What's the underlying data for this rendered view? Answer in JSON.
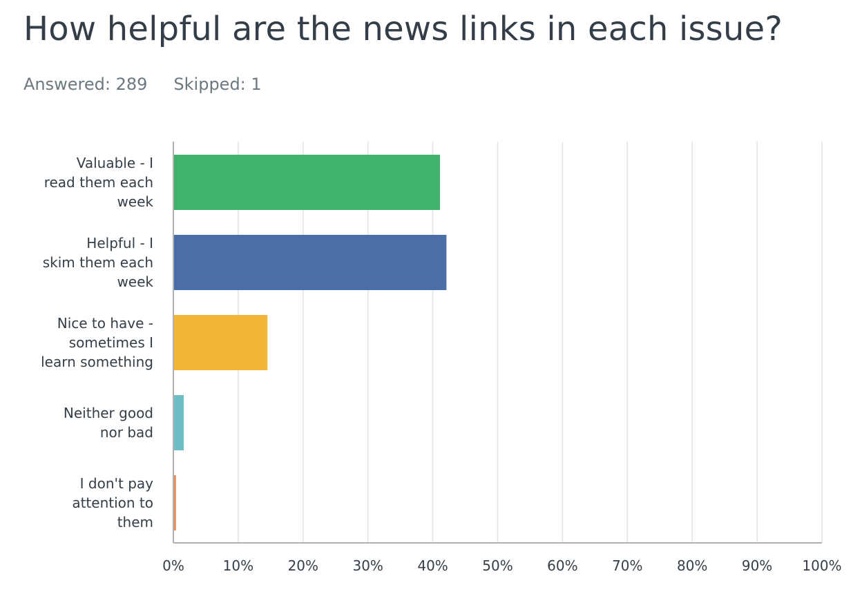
{
  "question": {
    "title": "How helpful are the news links in each issue?",
    "answered_label": "Answered:",
    "answered_count": "289",
    "skipped_label": "Skipped:",
    "skipped_count": "1"
  },
  "colors": {
    "gridline": "#e3e3e3",
    "axis": "#b0b0b0"
  },
  "chart_data": {
    "type": "bar",
    "orientation": "horizontal",
    "title": "",
    "xlabel": "",
    "ylabel": "",
    "xlim": [
      0,
      100
    ],
    "grid": true,
    "x_ticks": [
      0,
      10,
      20,
      30,
      40,
      50,
      60,
      70,
      80,
      90,
      100
    ],
    "tick_labels": [
      "0%",
      "10%",
      "20%",
      "30%",
      "40%",
      "50%",
      "60%",
      "70%",
      "80%",
      "90%",
      "100%"
    ],
    "categories": [
      [
        "Valuable - I",
        "read them each",
        "week"
      ],
      [
        "Helpful - I",
        "skim them each",
        "week"
      ],
      [
        "Nice to have -",
        "sometimes I",
        "learn something"
      ],
      [
        "Neither good",
        "nor bad"
      ],
      [
        "I don't pay",
        "attention to",
        "them"
      ]
    ],
    "values": [
      41.0,
      42.0,
      14.4,
      1.5,
      0.3
    ],
    "bar_colors": [
      "#41b26c",
      "#4a6ea6",
      "#f2b737",
      "#6fbec6",
      "#ee8d5a"
    ]
  }
}
